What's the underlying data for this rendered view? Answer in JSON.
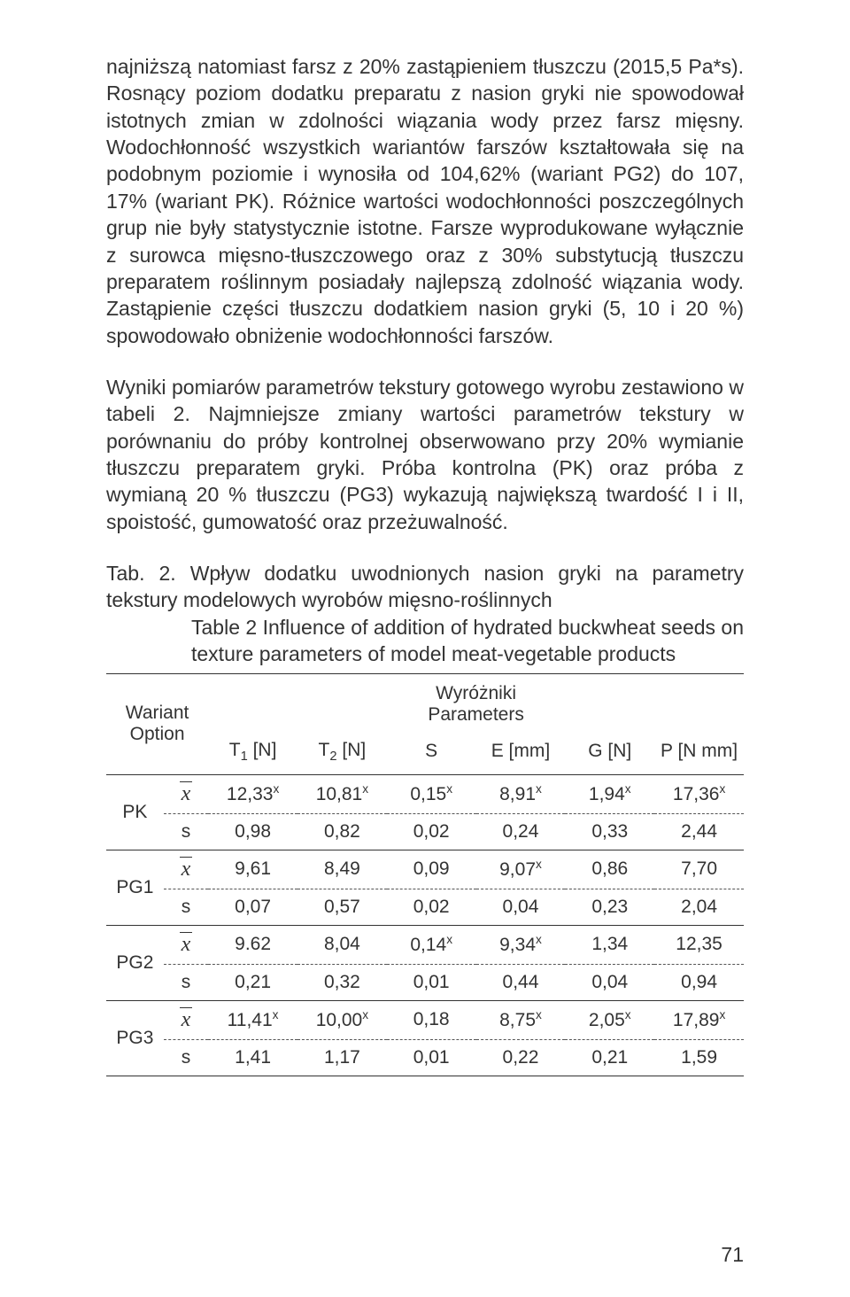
{
  "text": {
    "para1": "najniższą natomiast farsz z 20% zastąpieniem tłuszczu (2015,5 Pa*s). Rosnący poziom dodatku preparatu z nasion gryki nie spowodował istotnych zmian w zdolności wiązania wody przez farsz mięsny. Wodochłonność wszystkich wariantów farszów kształtowała się na podobnym poziomie i wynosiła od 104,62% (wariant PG2) do 107, 17% (wariant PK). Różnice wartości wodochłonności poszczególnych grup nie były statystycznie istotne. Farsze wyprodukowane wyłącznie z surowca mięsno-tłuszczowego oraz z 30% substytucją tłuszczu preparatem roślinnym posiadały najlepszą zdolność wiązania wody. Zastąpienie części tłuszczu dodatkiem nasion gryki (5, 10 i 20 %) spowodowało obniżenie wodochłonności farszów.",
    "para2": "Wyniki pomiarów parametrów tekstury gotowego wyrobu zestawiono w tabeli 2. Najmniejsze zmiany wartości parametrów tekstury w porównaniu do próby kontrolnej obserwowano przy 20% wymianie tłuszczu preparatem gryki. Próba kontrolna (PK) oraz próba z wymianą 20 % tłuszczu (PG3) wykazują największą twardość I i II, spoistość, gumowatość oraz przeżuwalność.",
    "tab_label": "Tab. 2.",
    "tab_title": "Wpływ dodatku uwodnionych nasion gryki na parametry tekstury modelowych wyrobów mięsno-roślinnych",
    "tab_label_en": "Table 2",
    "tab_title_en": "Influence of addition of hydrated buckwheat seeds on texture parameters of model meat-vegetable products",
    "hdr_option_pl": "Wariant",
    "hdr_option_en": "Option",
    "hdr_params_pl": "Wyróżniki",
    "hdr_params_en": "Parameters",
    "page_number": "71"
  },
  "columns": [
    "T₁ [N]",
    "T₂ [N]",
    "S",
    "E [mm]",
    "G [N]",
    "P [N mm]"
  ],
  "columns_raw": [
    {
      "label": "T",
      "sub": "1",
      "unit": " [N]"
    },
    {
      "label": "T",
      "sub": "2",
      "unit": " [N]"
    },
    {
      "label": "S",
      "sub": "",
      "unit": ""
    },
    {
      "label": "E",
      "sub": "",
      "unit": " [mm]"
    },
    {
      "label": "G",
      "sub": "",
      "unit": " [N]"
    },
    {
      "label": "P",
      "sub": "",
      "unit": " [N mm]"
    }
  ],
  "rows": [
    {
      "name": "PK",
      "x": [
        {
          "v": "12,33",
          "sup": "x"
        },
        {
          "v": "10,81",
          "sup": "x"
        },
        {
          "v": "0,15",
          "sup": "x"
        },
        {
          "v": "8,91",
          "sup": "x"
        },
        {
          "v": "1,94",
          "sup": "x"
        },
        {
          "v": "17,36",
          "sup": "x"
        }
      ],
      "s": [
        "0,98",
        "0,82",
        "0,02",
        "0,24",
        "0,33",
        "2,44"
      ]
    },
    {
      "name": "PG1",
      "x": [
        {
          "v": "9,61",
          "sup": ""
        },
        {
          "v": "8,49",
          "sup": ""
        },
        {
          "v": "0,09",
          "sup": ""
        },
        {
          "v": "9,07",
          "sup": "x"
        },
        {
          "v": "0,86",
          "sup": ""
        },
        {
          "v": "7,70",
          "sup": ""
        }
      ],
      "s": [
        "0,07",
        "0,57",
        "0,02",
        "0,04",
        "0,23",
        "2,04"
      ]
    },
    {
      "name": "PG2",
      "x": [
        {
          "v": "9.62",
          "sup": ""
        },
        {
          "v": "8,04",
          "sup": ""
        },
        {
          "v": "0,14",
          "sup": "x"
        },
        {
          "v": "9,34",
          "sup": "x"
        },
        {
          "v": "1,34",
          "sup": ""
        },
        {
          "v": "12,35",
          "sup": ""
        }
      ],
      "s": [
        "0,21",
        "0,32",
        "0,01",
        "0,44",
        "0,04",
        "0,94"
      ]
    },
    {
      "name": "PG3",
      "x": [
        {
          "v": "11,41",
          "sup": "x"
        },
        {
          "v": "10,00",
          "sup": "x"
        },
        {
          "v": "0,18",
          "sup": ""
        },
        {
          "v": "8,75",
          "sup": "x"
        },
        {
          "v": "2,05",
          "sup": "x"
        },
        {
          "v": "17,89",
          "sup": "x"
        }
      ],
      "s": [
        "1,41",
        "1,17",
        "0,01",
        "0,22",
        "0,21",
        "1,59"
      ]
    }
  ],
  "last_row_index": 3
}
